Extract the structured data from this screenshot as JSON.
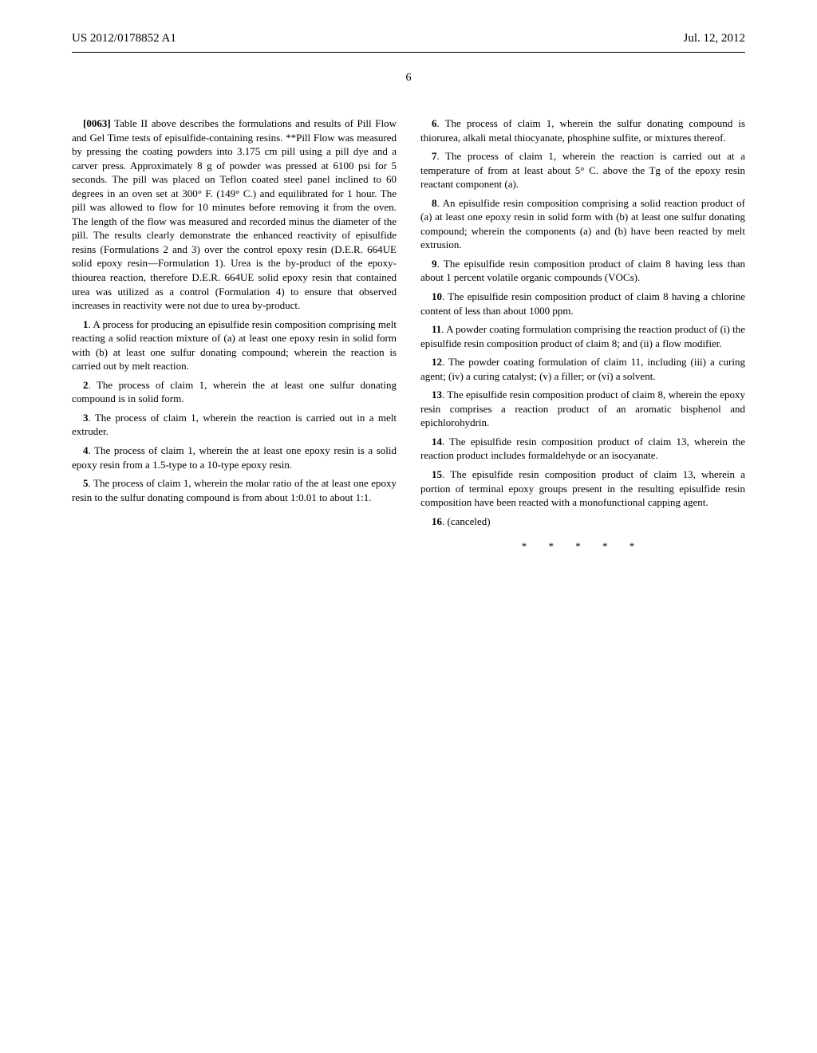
{
  "header": {
    "publication_number": "US 2012/0178852 A1",
    "date": "Jul. 12, 2012"
  },
  "page_number": "6",
  "left_column": {
    "para_0063_label": "[0063]",
    "para_0063_text": "Table II above describes the formulations and results of Pill Flow and Gel Time tests of episulfide-containing resins. **Pill Flow was measured by pressing the coating powders into 3.175 cm pill using a pill dye and a carver press. Approximately 8 g of powder was pressed at 6100 psi for 5 seconds. The pill was placed on Teflon coated steel panel inclined to 60 degrees in an oven set at 300° F. (149° C.) and equilibrated for 1 hour. The pill was allowed to flow for 10 minutes before removing it from the oven. The length of the flow was measured and recorded minus the diameter of the pill. The results clearly demonstrate the enhanced reactivity of episulfide resins (Formulations 2 and 3) over the control epoxy resin (D.E.R. 664UE solid epoxy resin—Formulation 1). Urea is the by-product of the epoxy-thiourea reaction, therefore D.E.R. 664UE solid epoxy resin that contained urea was utilized as a control (Formulation 4) to ensure that observed increases in reactivity were not due to urea by-product.",
    "claim_1": ". A process for producing an episulfide resin composition comprising melt reacting a solid reaction mixture of (a) at least one epoxy resin in solid form with (b) at least one sulfur donating compound; wherein the reaction is carried out by melt reaction.",
    "claim_2": ". The process of claim 1, wherein the at least one sulfur donating compound is in solid form.",
    "claim_3": ". The process of claim 1, wherein the reaction is carried out in a melt extruder.",
    "claim_4": ". The process of claim 1, wherein the at least one epoxy resin is a solid epoxy resin from a 1.5-type to a 10-type epoxy resin.",
    "claim_5": ". The process of claim 1, wherein the molar ratio of the at least one epoxy resin to the sulfur donating compound is from about 1:0.01 to about 1:1."
  },
  "right_column": {
    "claim_6": ". The process of claim 1, wherein the sulfur donating compound is thiorurea, alkali metal thiocyanate, phosphine sulfite, or mixtures thereof.",
    "claim_7": ". The process of claim 1, wherein the reaction is carried out at a temperature of from at least about 5° C. above the Tg of the epoxy resin reactant component (a).",
    "claim_8": ". An episulfide resin composition comprising a solid reaction product of (a) at least one epoxy resin in solid form with (b) at least one sulfur donating compound; wherein the components (a) and (b) have been reacted by melt extrusion.",
    "claim_9": ". The episulfide resin composition product of claim 8 having less than about 1 percent volatile organic compounds (VOCs).",
    "claim_10": ". The episulfide resin composition product of claim 8 having a chlorine content of less than about 1000 ppm.",
    "claim_11": ". A powder coating formulation comprising the reaction product of (i) the episulfide resin composition product of claim 8; and (ii) a flow modifier.",
    "claim_12": ". The powder coating formulation of claim 11, including (iii) a curing agent; (iv) a curing catalyst; (v) a filler; or (vi) a solvent.",
    "claim_13": ". The episulfide resin composition product of claim 8, wherein the epoxy resin comprises a reaction product of an aromatic bisphenol and epichlorohydrin.",
    "claim_14": ". The episulfide resin composition product of claim 13, wherein the reaction product includes formaldehyde or an isocyanate.",
    "claim_15": ". The episulfide resin composition product of claim 13, wherein a portion of terminal epoxy groups present in the resulting episulfide resin composition have been reacted with a monofunctional capping agent.",
    "claim_16": ". (canceled)"
  },
  "end_marks": "* * * * *"
}
